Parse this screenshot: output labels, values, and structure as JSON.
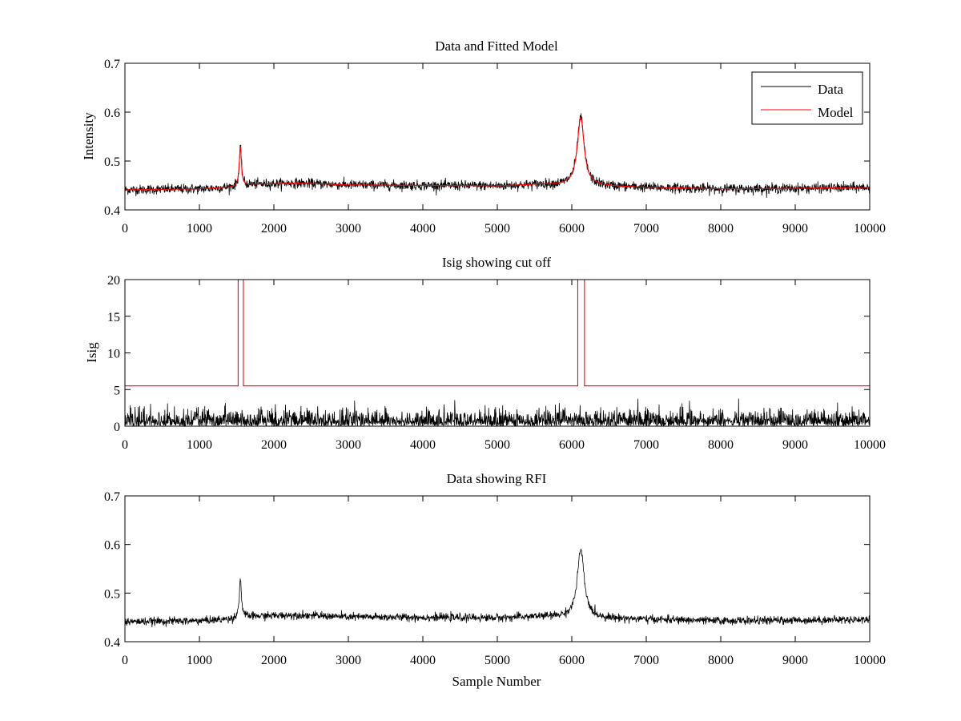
{
  "chart_data": [
    {
      "type": "line",
      "title": "Data and Fitted Model",
      "xlabel": "",
      "ylabel": "Intensity",
      "xlim": [
        0,
        10000
      ],
      "ylim": [
        0.4,
        0.7
      ],
      "xticks": [
        "0",
        "1000",
        "2000",
        "3000",
        "4000",
        "5000",
        "6000",
        "7000",
        "8000",
        "9000",
        "10000"
      ],
      "yticks": [
        "0.4",
        "0.5",
        "0.6",
        "0.7"
      ],
      "legend": {
        "position": "top-right",
        "entries": [
          "Data",
          "Model"
        ]
      },
      "series": [
        {
          "name": "Data",
          "color": "#000000",
          "style": "noisy",
          "noise_amplitude": 0.005,
          "baseline_points": [
            [
              0,
              0.441
            ],
            [
              1000,
              0.443
            ],
            [
              1500,
              0.447
            ],
            [
              1700,
              0.452
            ],
            [
              2300,
              0.455
            ],
            [
              3000,
              0.451
            ],
            [
              4000,
              0.45
            ],
            [
              5000,
              0.449
            ],
            [
              5600,
              0.452
            ],
            [
              7000,
              0.446
            ],
            [
              8000,
              0.443
            ],
            [
              9000,
              0.444
            ],
            [
              10000,
              0.446
            ]
          ],
          "peaks": [
            {
              "center": 1550,
              "height": 0.08,
              "width": 18
            },
            {
              "center": 6120,
              "height": 0.14,
              "width": 55
            }
          ]
        },
        {
          "name": "Model",
          "color": "#ff0000",
          "style": "smooth",
          "baseline_points": [
            [
              0,
              0.441
            ],
            [
              1000,
              0.443
            ],
            [
              1500,
              0.447
            ],
            [
              1700,
              0.452
            ],
            [
              2300,
              0.455
            ],
            [
              3000,
              0.451
            ],
            [
              4000,
              0.45
            ],
            [
              5000,
              0.449
            ],
            [
              5600,
              0.452
            ],
            [
              7000,
              0.446
            ],
            [
              8000,
              0.443
            ],
            [
              9000,
              0.444
            ],
            [
              10000,
              0.446
            ]
          ],
          "peaks": [
            {
              "center": 1550,
              "height": 0.08,
              "width": 18
            },
            {
              "center": 6120,
              "height": 0.14,
              "width": 55
            }
          ]
        }
      ]
    },
    {
      "type": "line",
      "title": "Isig showing cut off",
      "xlabel": "",
      "ylabel": "Isig",
      "xlim": [
        0,
        10000
      ],
      "ylim": [
        0,
        20
      ],
      "xticks": [
        "0",
        "1000",
        "2000",
        "3000",
        "4000",
        "5000",
        "6000",
        "7000",
        "8000",
        "9000",
        "10000"
      ],
      "yticks": [
        "0",
        "5",
        "10",
        "15",
        "20"
      ],
      "series": [
        {
          "name": "Isig",
          "color": "#000000",
          "style": "abs-noise",
          "noise_sigma": 1.05,
          "max_value": 4.0
        },
        {
          "name": "Cut off",
          "color": "#ff0000",
          "style": "step",
          "points": [
            [
              0,
              5.5
            ],
            [
              1520,
              5.5
            ],
            [
              1520,
              20
            ],
            [
              1590,
              20
            ],
            [
              1590,
              5.5
            ],
            [
              6080,
              5.5
            ],
            [
              6080,
              20
            ],
            [
              6170,
              20
            ],
            [
              6170,
              5.5
            ],
            [
              10000,
              5.5
            ]
          ]
        }
      ]
    },
    {
      "type": "line",
      "title": "Data showing RFI",
      "xlabel": "Sample Number",
      "ylabel": "",
      "xlim": [
        0,
        10000
      ],
      "ylim": [
        0.4,
        0.7
      ],
      "xticks": [
        "0",
        "1000",
        "2000",
        "3000",
        "4000",
        "5000",
        "6000",
        "7000",
        "8000",
        "9000",
        "10000"
      ],
      "yticks": [
        "0.4",
        "0.5",
        "0.6",
        "0.7"
      ],
      "series": [
        {
          "name": "Data",
          "color": "#000000",
          "style": "noisy",
          "noise_amplitude": 0.004,
          "baseline_points": [
            [
              0,
              0.441
            ],
            [
              1000,
              0.443
            ],
            [
              1500,
              0.447
            ],
            [
              1700,
              0.452
            ],
            [
              2300,
              0.455
            ],
            [
              3000,
              0.451
            ],
            [
              4000,
              0.45
            ],
            [
              5000,
              0.449
            ],
            [
              5600,
              0.452
            ],
            [
              7000,
              0.446
            ],
            [
              8000,
              0.443
            ],
            [
              9000,
              0.444
            ],
            [
              10000,
              0.446
            ]
          ],
          "peaks": [
            {
              "center": 1550,
              "height": 0.08,
              "width": 18
            },
            {
              "center": 6120,
              "height": 0.14,
              "width": 55
            }
          ]
        }
      ]
    }
  ]
}
